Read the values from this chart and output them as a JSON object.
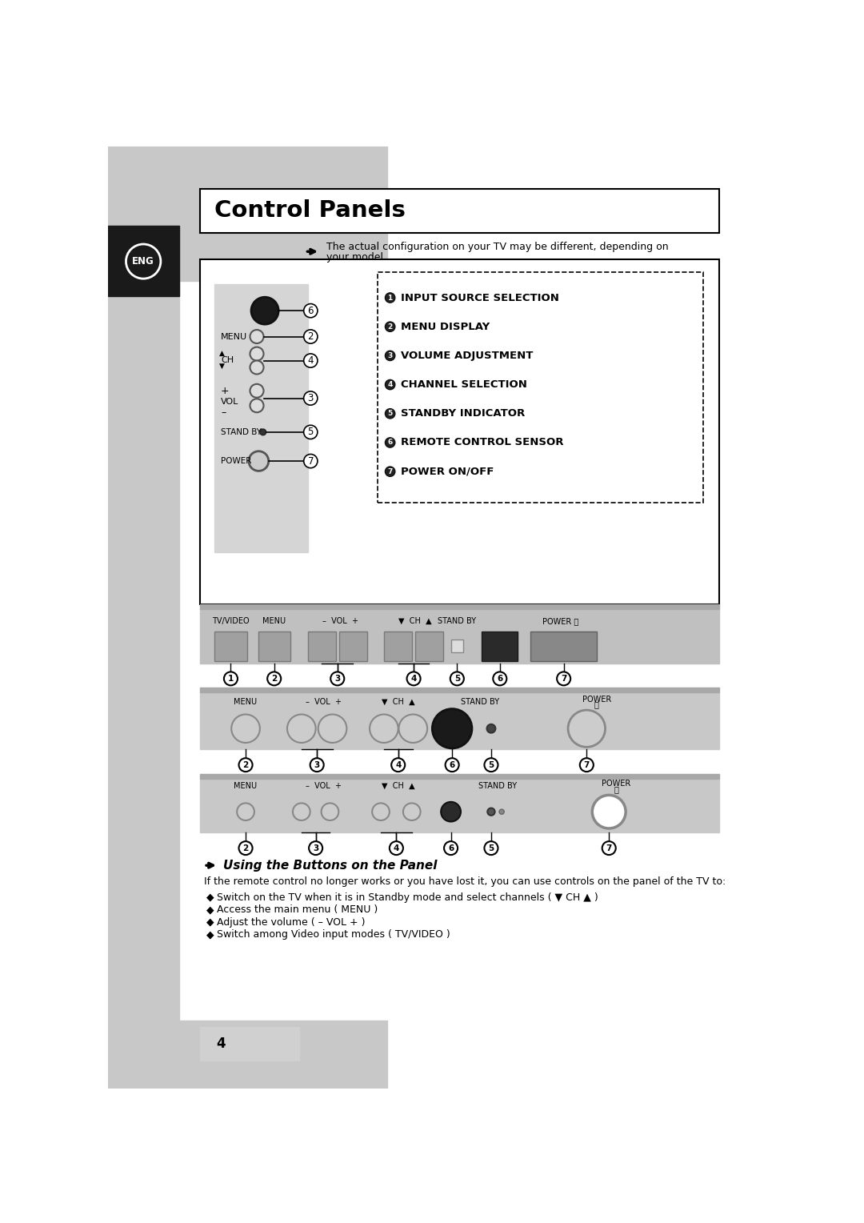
{
  "title": "Control Panels",
  "bg_color": "#ffffff",
  "left_sidebar_color": "#c8c8c8",
  "eng_box_color": "#1a1a1a",
  "note_text_line1": "The actual configuration on your TV may be different, depending on",
  "note_text_line2": "your model.",
  "legend_items": [
    "INPUT SOURCE SELECTION",
    "MENU DISPLAY",
    "VOLUME ADJUSTMENT",
    "CHANNEL SELECTION",
    "STANDBY INDICATOR",
    "REMOTE CONTROL SENSOR",
    "POWER ON/OFF"
  ],
  "legend_nums": [
    "1",
    "2",
    "3",
    "4",
    "5",
    "6",
    "7"
  ],
  "section2_title": "Using the Buttons on the Panel",
  "section2_intro": "If the remote control no longer works or you have lost it, you can use controls on the panel of the TV to:",
  "bullet_items": [
    "Switch on the TV when it is in Standby mode and select channels ( ▼ CH ▲ )",
    "Access the main menu ( MENU )",
    "Adjust the volume ( – VOL + )",
    "Switch among Video input modes ( TV/VIDEO )"
  ],
  "bullet_bold": [
    "▼ CH ▲",
    "MENU",
    "– VOL +",
    "TV/VIDEO"
  ],
  "page_number": "4"
}
